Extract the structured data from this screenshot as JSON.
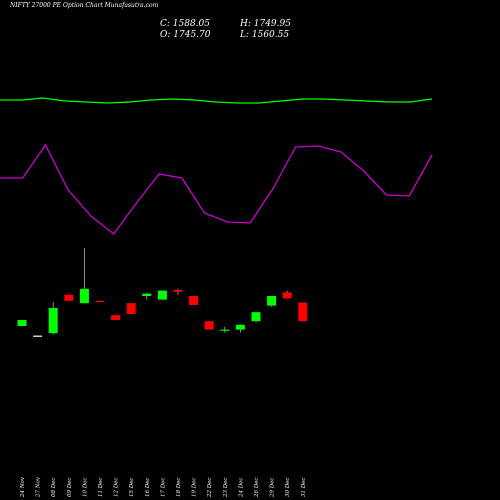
{
  "title": "NIFTY 27000 PE Option Chart Munafasutra.com",
  "ohlc": {
    "c_label": "C: 1588.05",
    "h_label": "H: 1749.95",
    "o_label": "O: 1745.70",
    "l_label": "L: 1560.55"
  },
  "colors": {
    "background": "#000000",
    "up": "#00ff00",
    "down": "#ff0000",
    "neutral": "#ffffff",
    "line_upper": "#00ff00",
    "line_lower": "#cc00cc",
    "text": "#ffffff"
  },
  "chart_data": {
    "type": "candlestick",
    "categories": [
      "24 Nov",
      "27 Nov",
      "08 Dec",
      "09 Dec",
      "10 Dec",
      "11 Dec",
      "12 Dec",
      "15 Dec",
      "16 Dec",
      "17 Dec",
      "18 Dec",
      "19 Dec",
      "22 Dec",
      "23 Dec",
      "24 Dec",
      "26 Dec",
      "29 Dec",
      "30 Dec",
      "31 Dec"
    ],
    "candles": [
      {
        "o": 1650,
        "h": 1650,
        "l": 1600,
        "c": 1600,
        "dir": "up"
      },
      {
        "o": 1520,
        "h": 1520,
        "l": 1512,
        "c": 1512,
        "dir": "neutral"
      },
      {
        "o": 1540,
        "h": 1800,
        "l": 1530,
        "c": 1750,
        "dir": "up"
      },
      {
        "o": 1860,
        "h": 1860,
        "l": 1810,
        "c": 1810,
        "dir": "down"
      },
      {
        "o": 1790,
        "h": 2250,
        "l": 1790,
        "c": 1910,
        "dir": "up"
      },
      {
        "o": 1810,
        "h": 1810,
        "l": 1800,
        "c": 1800,
        "dir": "down"
      },
      {
        "o": 1690,
        "h": 1690,
        "l": 1650,
        "c": 1650,
        "dir": "down"
      },
      {
        "o": 1790,
        "h": 1790,
        "l": 1700,
        "c": 1700,
        "dir": "down"
      },
      {
        "o": 1850,
        "h": 1875,
        "l": 1820,
        "c": 1870,
        "dir": "up"
      },
      {
        "o": 1820,
        "h": 1895,
        "l": 1820,
        "c": 1895,
        "dir": "up"
      },
      {
        "o": 1900,
        "h": 1910,
        "l": 1860,
        "c": 1885,
        "dir": "down"
      },
      {
        "o": 1850,
        "h": 1850,
        "l": 1775,
        "c": 1775,
        "dir": "down"
      },
      {
        "o": 1640,
        "h": 1640,
        "l": 1570,
        "c": 1570,
        "dir": "down"
      },
      {
        "o": 1570,
        "h": 1595,
        "l": 1545,
        "c": 1570,
        "dir": "up"
      },
      {
        "o": 1570,
        "h": 1610,
        "l": 1545,
        "c": 1610,
        "dir": "up"
      },
      {
        "o": 1640,
        "h": 1715,
        "l": 1630,
        "c": 1715,
        "dir": "up"
      },
      {
        "o": 1770,
        "h": 1850,
        "l": 1760,
        "c": 1850,
        "dir": "up"
      },
      {
        "o": 1880,
        "h": 1895,
        "l": 1830,
        "c": 1830,
        "dir": "down"
      },
      {
        "o": 1795,
        "h": 1795,
        "l": 1640,
        "c": 1640,
        "dir": "down"
      }
    ],
    "upper_line": [
      100,
      100,
      98,
      101,
      102,
      103,
      102,
      100,
      99,
      100,
      102,
      103,
      103,
      101,
      99,
      99,
      100,
      101,
      102,
      102,
      99
    ],
    "lower_line": [
      178,
      178,
      145,
      190,
      216,
      234,
      203,
      174,
      178,
      213,
      222,
      223,
      189,
      147,
      146,
      152,
      171,
      195,
      196,
      155
    ]
  }
}
